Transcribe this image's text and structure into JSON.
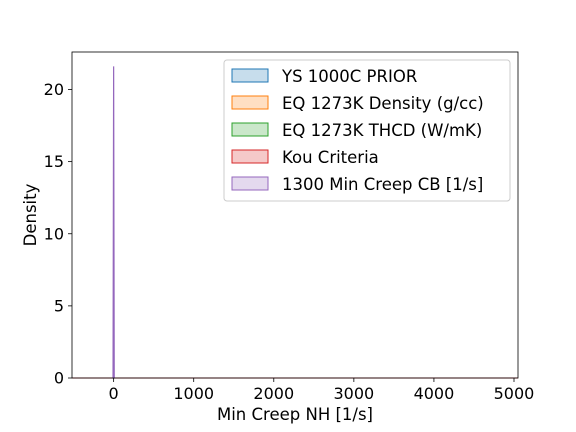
{
  "chart_data": {
    "type": "area",
    "title": "",
    "xlabel": "Min Creep NH [1/s]",
    "ylabel": "Density",
    "xlim": [
      -520,
      5050
    ],
    "ylim": [
      0,
      22.6
    ],
    "x_ticks": [
      0,
      1000,
      2000,
      3000,
      4000,
      5000
    ],
    "y_ticks": [
      0,
      5,
      10,
      15,
      20
    ],
    "grid": false,
    "legend_position": "upper-right",
    "series": [
      {
        "name": "YS 1000C PRIOR",
        "color": "#1f77b4",
        "peak_x": 0,
        "peak_density": 0
      },
      {
        "name": "EQ 1273K Density (g/cc)",
        "color": "#ff7f0e",
        "peak_x": 0,
        "peak_density": 0
      },
      {
        "name": "EQ 1273K THCD (W/mK)",
        "color": "#2ca02c",
        "peak_x": 0,
        "peak_density": 0
      },
      {
        "name": "Kou Criteria",
        "color": "#d62728",
        "peak_x": 0,
        "peak_density": 0
      },
      {
        "name": "1300 Min Creep CB [1/s]",
        "color": "#9467bd",
        "peak_x": 0,
        "peak_density": 21.6
      }
    ]
  }
}
